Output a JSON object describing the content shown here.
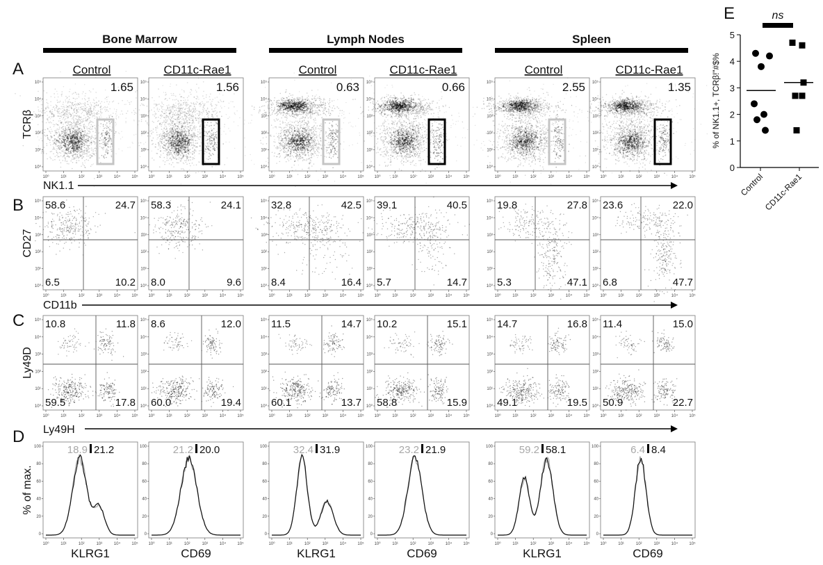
{
  "tissues": [
    {
      "label": "Bone Marrow"
    },
    {
      "label": "Lymph Nodes"
    },
    {
      "label": "Spleen"
    }
  ],
  "panel_letters": {
    "A": "A",
    "B": "B",
    "C": "C",
    "D": "D",
    "E": "E"
  },
  "conditions": [
    "Control",
    "CD11c-Rae1",
    "Control",
    "CD11c-Rae1",
    "Control",
    "CD11c-Rae1"
  ],
  "row_a": {
    "y_label": "TCRβ",
    "x_label": "NK1.1",
    "percents": [
      "1.65",
      "1.56",
      "0.63",
      "0.66",
      "2.55",
      "1.35"
    ],
    "gate_colors": [
      "#c4c4c4",
      "#000000",
      "#c4c4c4",
      "#000000",
      "#c4c4c4",
      "#000000"
    ]
  },
  "row_b": {
    "y_label": "CD27",
    "x_label": "CD11b",
    "quadrants": [
      [
        "58.6",
        "24.7",
        "6.5",
        "10.2"
      ],
      [
        "58.3",
        "24.1",
        "8.0",
        "9.6"
      ],
      [
        "32.8",
        "42.5",
        "8.4",
        "16.4"
      ],
      [
        "39.1",
        "40.5",
        "5.7",
        "14.7"
      ],
      [
        "19.8",
        "27.8",
        "5.3",
        "47.1"
      ],
      [
        "23.6",
        "22.0",
        "6.8",
        "47.7"
      ]
    ]
  },
  "row_c": {
    "y_label": "Ly49D",
    "x_label": "Ly49H",
    "quadrants": [
      [
        "10.8",
        "11.8",
        "59.5",
        "17.8"
      ],
      [
        "8.6",
        "12.0",
        "60.0",
        "19.4"
      ],
      [
        "11.5",
        "14.7",
        "60.1",
        "13.7"
      ],
      [
        "10.2",
        "15.1",
        "58.8",
        "15.9"
      ],
      [
        "14.7",
        "16.8",
        "49.1",
        "19.5"
      ],
      [
        "11.4",
        "15.0",
        "50.9",
        "22.7"
      ]
    ]
  },
  "row_d": {
    "y_label": "% of max.",
    "x_labels": [
      "KLRG1",
      "CD69",
      "KLRG1",
      "CD69",
      "KLRG1",
      "CD69"
    ],
    "control_values": [
      "18.9",
      "21.2",
      "32.4",
      "23.2",
      "59.2",
      "6.4"
    ],
    "rae1_values": [
      "21.2",
      "20.0",
      "31.9",
      "21.9",
      "58.1",
      "8.4"
    ],
    "control_color": "#a8a8a8",
    "rae1_color": "#111111"
  },
  "axis_ticks": {
    "x": [
      "10⁰",
      "10¹",
      "10²",
      "10³",
      "10⁴",
      "10⁵"
    ],
    "y": [
      "10⁵",
      "10⁴",
      "10³",
      "10²",
      "10¹",
      "10⁰"
    ],
    "hist_y": [
      "100",
      "80",
      "60",
      "40",
      "20",
      "0"
    ]
  },
  "panel_e": {
    "y_label": "% of NK1.1+, TCRβ!\"#$%",
    "significance": "ns",
    "chart_data": {
      "type": "scatter",
      "categories": [
        "Control",
        "CD11c-Rae1"
      ],
      "series": [
        {
          "values": [
            4.3,
            4.2,
            3.8,
            2.4,
            2.0,
            1.8,
            1.4
          ],
          "mean": 2.9,
          "marker": "circle"
        },
        {
          "values": [
            4.7,
            4.6,
            3.2,
            2.7,
            2.7,
            1.4
          ],
          "mean": 3.2,
          "marker": "square"
        }
      ],
      "ylim": [
        0,
        5
      ],
      "yticks": [
        "0",
        "1",
        "2",
        "3",
        "4",
        "5"
      ]
    }
  }
}
